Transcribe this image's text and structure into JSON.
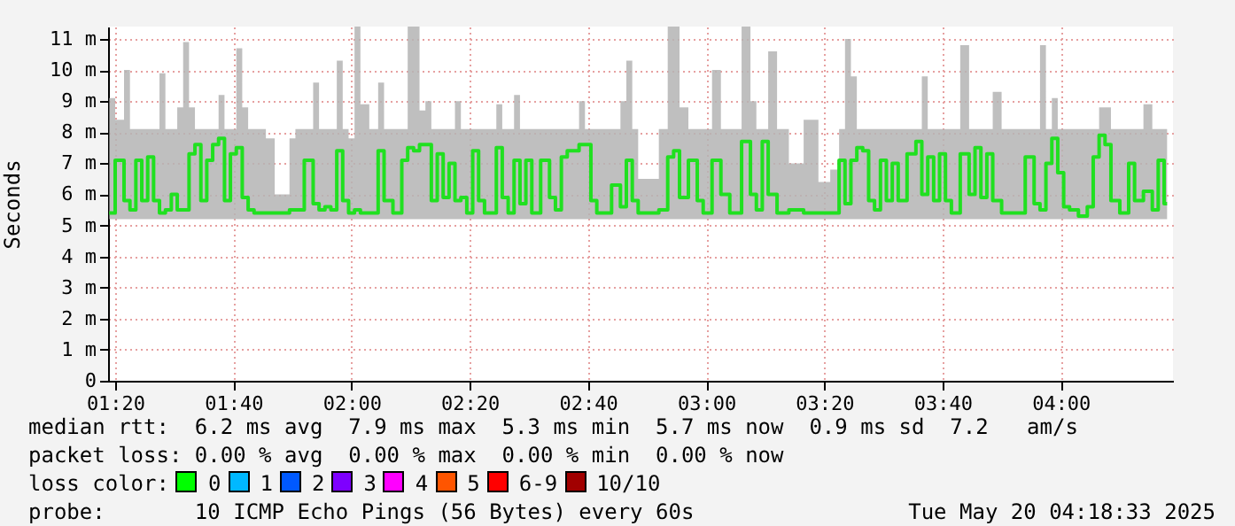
{
  "chart_data": {
    "type": "step",
    "ylabel": "Seconds",
    "grid": true,
    "xlim": [
      "2025-05-20T01:18:48",
      "2025-05-20T04:19"
    ],
    "xticks": [
      {
        "value": "2025-05-20T01:20",
        "label": "01:20"
      },
      {
        "value": "2025-05-20T01:40",
        "label": "01:40"
      },
      {
        "value": "2025-05-20T02:00",
        "label": "02:00"
      },
      {
        "value": "2025-05-20T02:20",
        "label": "02:20"
      },
      {
        "value": "2025-05-20T02:40",
        "label": "02:40"
      },
      {
        "value": "2025-05-20T03:00",
        "label": "03:00"
      },
      {
        "value": "2025-05-20T03:20",
        "label": "03:20"
      },
      {
        "value": "2025-05-20T03:40",
        "label": "03:40"
      },
      {
        "value": "2025-05-20T04:00",
        "label": "04:00"
      }
    ],
    "ylim": [
      0,
      11.4
    ],
    "yticks": [
      0,
      {
        "value": 1,
        "label": "1 m"
      },
      {
        "value": 2,
        "label": "2 m"
      },
      {
        "value": 3,
        "label": "3 m"
      },
      {
        "value": 4,
        "label": "4 m"
      },
      {
        "value": 5,
        "label": "5 m"
      },
      {
        "value": 6,
        "label": "6 m"
      },
      {
        "value": 7,
        "label": "7 m"
      },
      {
        "value": 8,
        "label": "8 m"
      },
      {
        "value": 9,
        "label": "9 m"
      },
      {
        "value": 10,
        "label": "10 m"
      },
      {
        "value": 11,
        "label": "11 m"
      }
    ],
    "x": [
      "2025-05-20T01:19",
      "2025-05-20T01:21",
      "2025-05-20T01:22",
      "2025-05-20T01:23",
      "2025-05-20T01:24",
      "2025-05-20T01:25",
      "2025-05-20T01:26",
      "2025-05-20T01:27",
      "2025-05-20T01:28",
      "2025-05-20T01:29",
      "2025-05-20T01:30",
      "2025-05-20T01:31",
      "2025-05-20T01:32",
      "2025-05-20T01:33",
      "2025-05-20T01:34",
      "2025-05-20T01:35",
      "2025-05-20T01:36",
      "2025-05-20T01:37",
      "2025-05-20T01:38",
      "2025-05-20T01:39",
      "2025-05-20T01:40",
      "2025-05-20T01:41",
      "2025-05-20T01:42",
      "2025-05-20T01:43",
      "2025-05-20T01:44",
      "2025-05-20T01:45",
      "2025-05-20T01:46",
      "2025-05-20T01:48",
      "2025-05-20T01:49",
      "2025-05-20T01:50",
      "2025-05-20T01:51",
      "2025-05-20T01:53",
      "2025-05-20T01:54",
      "2025-05-20T01:55",
      "2025-05-20T01:56",
      "2025-05-20T01:57",
      "2025-05-20T01:58",
      "2025-05-20T01:59",
      "2025-05-20T02:00",
      "2025-05-20T02:01",
      "2025-05-20T02:02",
      "2025-05-20T02:04",
      "2025-05-20T02:05",
      "2025-05-20T02:06",
      "2025-05-20T02:08",
      "2025-05-20T02:09",
      "2025-05-20T02:10",
      "2025-05-20T02:11",
      "2025-05-20T02:12",
      "2025-05-20T02:13",
      "2025-05-20T02:14",
      "2025-05-20T02:15",
      "2025-05-20T02:16",
      "2025-05-20T02:17",
      "2025-05-20T02:18",
      "2025-05-20T02:19",
      "2025-05-20T02:20",
      "2025-05-20T02:21",
      "2025-05-20T02:22",
      "2025-05-20T02:23",
      "2025-05-20T02:24",
      "2025-05-20T02:25",
      "2025-05-20T02:26",
      "2025-05-20T02:27",
      "2025-05-20T02:28",
      "2025-05-20T02:29",
      "2025-05-20T02:30",
      "2025-05-20T02:31",
      "2025-05-20T02:33",
      "2025-05-20T02:34",
      "2025-05-20T02:35",
      "2025-05-20T02:36",
      "2025-05-20T02:37",
      "2025-05-20T02:38",
      "2025-05-20T02:39",
      "2025-05-20T02:40",
      "2025-05-20T02:41",
      "2025-05-20T02:42",
      "2025-05-20T02:43",
      "2025-05-20T02:45",
      "2025-05-20T02:46",
      "2025-05-20T02:47",
      "2025-05-20T02:48",
      "2025-05-20T02:49",
      "2025-05-20T02:51",
      "2025-05-20T02:53",
      "2025-05-20T02:54",
      "2025-05-20T02:55",
      "2025-05-20T02:56",
      "2025-05-20T02:58",
      "2025-05-20T02:59",
      "2025-05-20T03:00",
      "2025-05-20T03:02",
      "2025-05-20T03:03",
      "2025-05-20T03:05",
      "2025-05-20T03:07",
      "2025-05-20T03:08",
      "2025-05-20T03:09",
      "2025-05-20T03:10",
      "2025-05-20T03:11",
      "2025-05-20T03:13",
      "2025-05-20T03:15",
      "2025-05-20T03:18",
      "2025-05-20T03:20",
      "2025-05-20T03:22",
      "2025-05-20T03:23",
      "2025-05-20T03:24",
      "2025-05-20T03:25",
      "2025-05-20T03:26",
      "2025-05-20T03:27",
      "2025-05-20T03:28",
      "2025-05-20T03:29",
      "2025-05-20T03:30",
      "2025-05-20T03:31",
      "2025-05-20T03:32",
      "2025-05-20T03:33",
      "2025-05-20T03:35",
      "2025-05-20T03:36",
      "2025-05-20T03:37",
      "2025-05-20T03:38",
      "2025-05-20T03:39",
      "2025-05-20T03:40",
      "2025-05-20T03:41",
      "2025-05-20T03:42",
      "2025-05-20T03:44",
      "2025-05-20T03:45",
      "2025-05-20T03:46",
      "2025-05-20T03:47",
      "2025-05-20T03:48",
      "2025-05-20T03:49",
      "2025-05-20T03:51",
      "2025-05-20T03:53",
      "2025-05-20T03:55",
      "2025-05-20T03:56",
      "2025-05-20T03:57",
      "2025-05-20T03:58",
      "2025-05-20T03:59",
      "2025-05-20T04:00",
      "2025-05-20T04:01",
      "2025-05-20T04:02",
      "2025-05-20T04:04",
      "2025-05-20T04:05",
      "2025-05-20T04:06",
      "2025-05-20T04:07",
      "2025-05-20T04:08",
      "2025-05-20T04:09",
      "2025-05-20T04:11",
      "2025-05-20T04:12",
      "2025-05-20T04:13",
      "2025-05-20T04:15",
      "2025-05-20T04:16",
      "2025-05-20T04:17",
      "2025-05-20T04:18"
    ],
    "series": [
      {
        "color": "#20e020",
        "values": [
          5.4,
          7.1,
          5.8,
          5.5,
          7.1,
          5.8,
          7.2,
          5.8,
          5.4,
          5.5,
          6.0,
          5.5,
          5.5,
          7.3,
          7.6,
          5.8,
          7.1,
          7.6,
          7.8,
          5.8,
          7.3,
          7.5,
          5.9,
          5.5,
          5.4,
          5.4,
          5.4,
          5.4,
          5.4,
          5.5,
          5.5,
          7.1,
          5.7,
          5.5,
          5.6,
          5.5,
          7.4,
          5.8,
          5.4,
          5.5,
          5.4,
          5.4,
          7.4,
          5.8,
          5.4,
          7.1,
          7.5,
          7.4,
          7.6,
          7.6,
          5.8,
          7.3,
          5.9,
          7.0,
          5.8,
          5.9,
          5.4,
          7.4,
          5.8,
          5.4,
          5.4,
          7.5,
          5.9,
          5.4,
          7.1,
          5.7,
          7.1,
          5.4,
          7.1,
          5.9,
          5.5,
          7.2,
          7.4,
          7.4,
          7.6,
          7.6,
          5.8,
          5.4,
          5.4,
          6.3,
          5.6,
          7.1,
          5.8,
          5.4,
          5.4,
          5.5,
          7.2,
          7.4,
          5.9,
          7.1,
          5.8,
          5.4,
          7.1,
          6.0,
          5.4,
          7.7,
          6.0,
          5.5,
          7.7,
          6.0,
          5.4,
          5.5,
          5.4,
          5.4,
          5.4,
          7.1,
          5.7,
          7.1,
          7.5,
          7.4,
          5.8,
          5.5,
          7.1,
          5.8,
          7.0,
          5.8,
          7.3,
          7.7,
          6.0,
          7.2,
          5.8,
          7.3,
          5.8,
          5.4,
          7.3,
          6.0,
          7.5,
          5.9,
          7.3,
          5.8,
          5.4,
          5.4,
          7.2,
          5.7,
          5.5,
          7.0,
          7.8,
          6.7,
          5.6,
          5.5,
          5.3,
          5.6,
          7.2,
          7.9,
          7.6,
          5.8,
          5.4,
          7.0,
          5.8,
          6.1,
          5.5,
          7.1,
          5.7
        ],
        "lower": [
          5.2,
          5.2,
          5.2,
          5.2,
          5.2,
          5.2,
          5.2,
          5.2,
          5.2,
          5.2,
          5.2,
          5.2,
          5.2,
          5.2,
          5.2,
          5.2,
          5.2,
          5.2,
          5.2,
          5.2,
          5.2,
          5.2,
          5.2,
          5.2,
          5.2,
          5.2,
          5.2,
          5.2,
          5.2,
          5.2,
          5.2,
          5.2,
          5.2,
          5.2,
          5.2,
          5.2,
          5.2,
          5.2,
          5.2,
          5.2,
          5.2,
          5.2,
          5.2,
          5.2,
          5.2,
          5.2,
          5.2,
          5.2,
          5.2,
          5.2,
          5.2,
          5.2,
          5.2,
          5.2,
          5.2,
          5.2,
          5.2,
          5.2,
          5.2,
          5.2,
          5.2,
          5.2,
          5.2,
          5.2,
          5.2,
          5.2,
          5.2,
          5.2,
          5.2,
          5.2,
          5.2,
          5.2,
          5.2,
          5.2,
          5.2,
          5.2,
          5.2,
          5.2,
          5.2,
          5.2,
          5.2,
          5.2,
          5.2,
          5.2,
          5.2,
          5.2,
          5.2,
          5.2,
          5.2,
          5.2,
          5.2,
          5.2,
          5.2,
          5.2,
          5.2,
          5.2,
          5.2,
          5.2,
          5.2,
          5.2,
          5.2,
          5.2,
          5.2,
          5.2,
          5.2,
          5.2,
          5.2,
          5.2,
          5.2,
          5.2,
          5.2,
          5.2,
          5.2,
          5.2,
          5.2,
          5.2,
          5.2,
          5.2,
          5.2,
          5.2,
          5.2,
          5.2,
          5.2,
          5.2,
          5.2,
          5.2,
          5.2,
          5.2,
          5.2,
          5.2,
          5.2,
          5.2,
          5.2,
          5.2,
          5.2,
          5.2,
          5.2,
          5.2,
          5.2,
          5.2,
          5.2,
          5.2,
          5.2,
          5.2,
          5.2,
          5.2,
          5.2,
          5.2,
          5.2,
          5.2,
          5.2,
          5.2,
          5.2
        ],
        "upper": [
          9.1,
          8.4,
          10.0,
          8.1,
          8.1,
          8.1,
          8.1,
          8.1,
          9.9,
          8.1,
          8.1,
          8.8,
          10.9,
          8.8,
          8.1,
          8.1,
          8.1,
          8.1,
          9.2,
          8.1,
          8.1,
          10.7,
          8.8,
          8.1,
          8.1,
          8.1,
          7.8,
          6.0,
          6.0,
          7.8,
          8.1,
          8.1,
          9.6,
          8.1,
          8.1,
          8.1,
          10.3,
          8.1,
          7.8,
          11.4,
          8.9,
          8.1,
          9.6,
          8.1,
          8.1,
          8.1,
          11.4,
          11.4,
          8.7,
          9.0,
          8.1,
          8.1,
          8.1,
          8.1,
          9.0,
          8.1,
          8.1,
          8.1,
          8.1,
          8.1,
          8.1,
          8.9,
          8.1,
          8.1,
          9.2,
          8.1,
          8.1,
          8.1,
          8.1,
          8.1,
          8.1,
          8.1,
          8.1,
          8.1,
          9.0,
          8.1,
          8.1,
          8.1,
          8.1,
          8.1,
          9.0,
          10.3,
          8.1,
          6.5,
          6.5,
          8.1,
          11.4,
          11.4,
          8.8,
          8.1,
          8.1,
          8.1,
          10.0,
          8.1,
          8.1,
          11.4,
          9.0,
          8.1,
          8.1,
          10.6,
          8.1,
          7.0,
          8.4,
          6.4,
          6.8,
          8.1,
          11.0,
          9.8,
          8.1,
          8.1,
          8.1,
          8.1,
          8.1,
          8.1,
          8.1,
          8.1,
          8.1,
          8.1,
          9.8,
          8.1,
          8.1,
          8.1,
          8.1,
          8.1,
          10.8,
          8.1,
          8.1,
          8.1,
          8.1,
          9.3,
          8.1,
          8.1,
          8.1,
          8.1,
          10.8,
          8.1,
          9.1,
          8.1,
          8.1,
          8.1,
          8.1,
          8.1,
          8.1,
          8.8,
          8.8,
          8.1,
          8.1,
          8.1,
          8.1,
          8.9,
          8.1,
          8.1,
          8.1
        ]
      }
    ],
    "annotations": [
      "median rtt:  6.2 ms avg  7.9 ms max  5.3 ms min  5.7 ms now  0.9 ms sd  7.2   am/s",
      "packet loss: 0.00 % avg  0.00 % max  0.00 % min  0.00 % now",
      "loss color:",
      "0",
      "1",
      "2",
      "3",
      "4",
      "5",
      "6-9",
      "10/10",
      "probe:       10 ICMP Echo Pings (56 Bytes) every 60s",
      "Tue May 20 04:18:33 2025"
    ]
  }
}
